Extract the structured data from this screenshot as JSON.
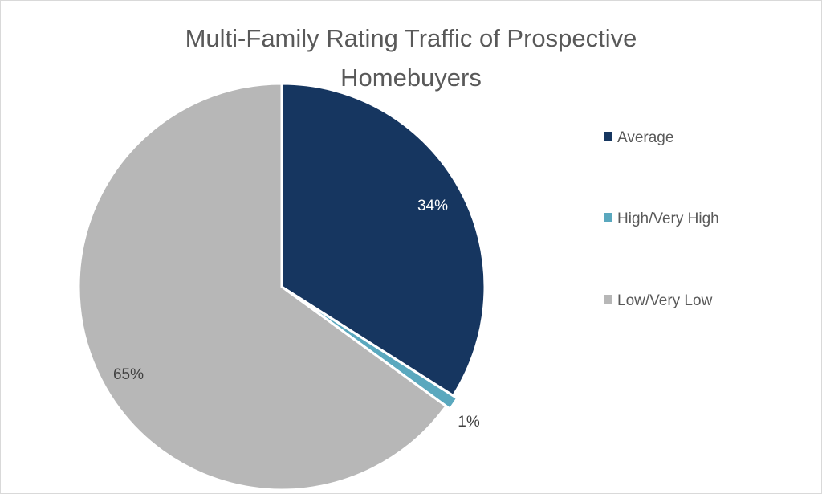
{
  "chart_data": {
    "type": "pie",
    "title_lines": [
      "Multi-Family Rating Traffic of Prospective",
      "Homebuyers"
    ],
    "categories": [
      "Average",
      "High/Very High",
      "Low/Very Low"
    ],
    "values": [
      34,
      1,
      65
    ],
    "data_labels": [
      "34%",
      "1%",
      "65%"
    ],
    "colors": [
      "#163660",
      "#5AA8BE",
      "#B7B7B7"
    ],
    "label_colors": [
      "#FFFFFF",
      "#404040",
      "#404040"
    ],
    "start_angle": "12 o'clock, clockwise",
    "legend": {
      "placement": "right",
      "entries": [
        "Average",
        "High/Very High",
        "Low/Very Low"
      ]
    }
  }
}
